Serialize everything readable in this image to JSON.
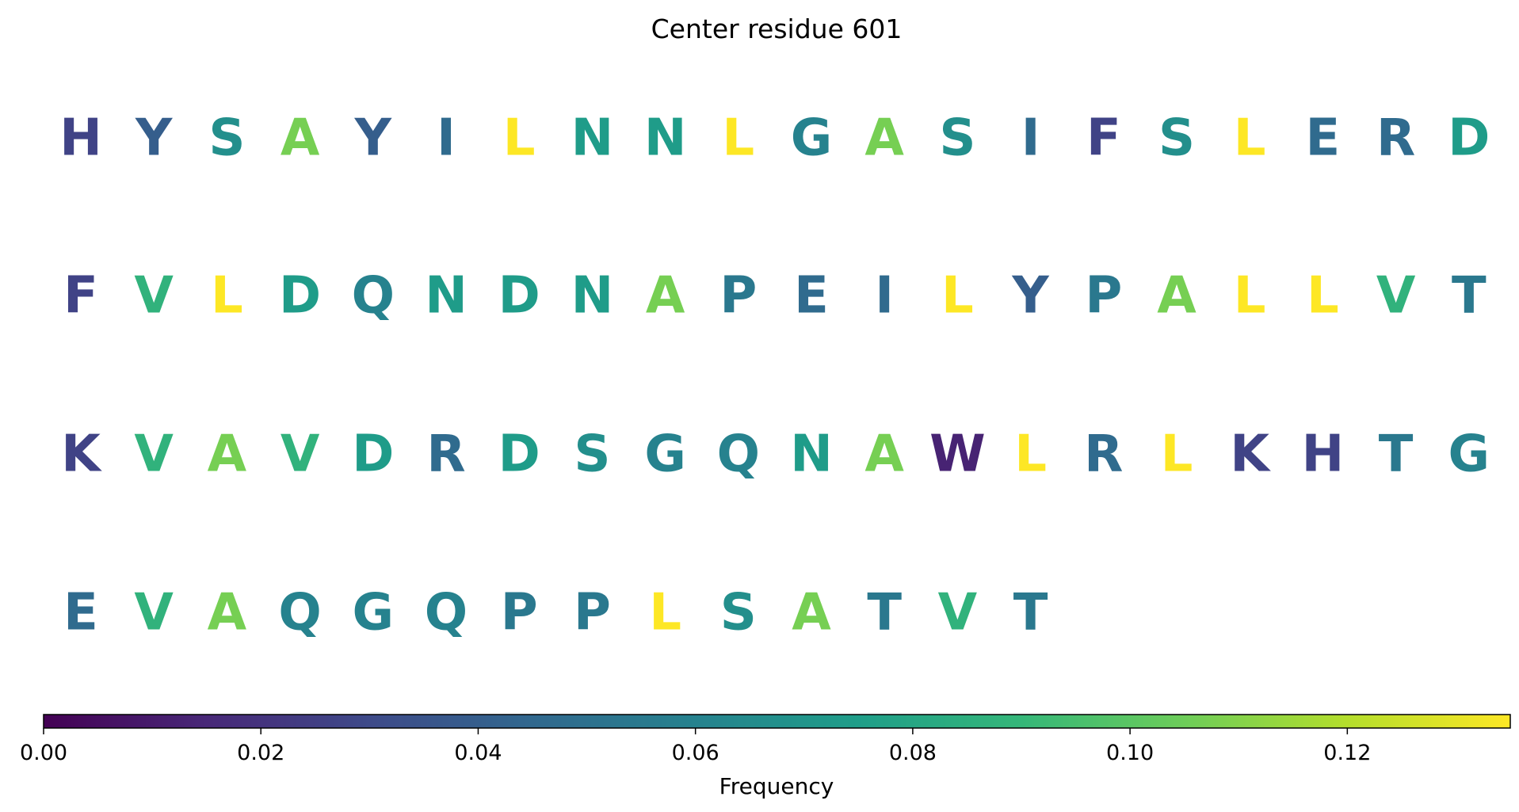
{
  "chart_data": {
    "type": "heatmap",
    "title": "Center residue 601",
    "colormap": "viridis",
    "colorbar": {
      "label": "Frequency",
      "range": [
        0,
        0.135
      ],
      "ticks": [
        0.0,
        0.02,
        0.04,
        0.06,
        0.08,
        0.1,
        0.12
      ],
      "tick_labels": [
        "0.00",
        "0.02",
        "0.04",
        "0.06",
        "0.08",
        "0.10",
        "0.12"
      ],
      "orientation": "horizontal",
      "placement": "bottom"
    },
    "columns_per_row": 20,
    "residues": [
      {
        "letter": "H",
        "frequency": 0.027
      },
      {
        "letter": "Y",
        "frequency": 0.04
      },
      {
        "letter": "S",
        "frequency": 0.067
      },
      {
        "letter": "A",
        "frequency": 0.107
      },
      {
        "letter": "Y",
        "frequency": 0.04
      },
      {
        "letter": "I",
        "frequency": 0.047
      },
      {
        "letter": "L",
        "frequency": 0.135
      },
      {
        "letter": "N",
        "frequency": 0.074
      },
      {
        "letter": "N",
        "frequency": 0.074
      },
      {
        "letter": "L",
        "frequency": 0.135
      },
      {
        "letter": "G",
        "frequency": 0.06
      },
      {
        "letter": "A",
        "frequency": 0.107
      },
      {
        "letter": "S",
        "frequency": 0.067
      },
      {
        "letter": "I",
        "frequency": 0.047
      },
      {
        "letter": "F",
        "frequency": 0.027
      },
      {
        "letter": "S",
        "frequency": 0.067
      },
      {
        "letter": "L",
        "frequency": 0.135
      },
      {
        "letter": "E",
        "frequency": 0.047
      },
      {
        "letter": "R",
        "frequency": 0.047
      },
      {
        "letter": "D",
        "frequency": 0.074
      },
      {
        "letter": "F",
        "frequency": 0.027
      },
      {
        "letter": "V",
        "frequency": 0.087
      },
      {
        "letter": "L",
        "frequency": 0.135
      },
      {
        "letter": "D",
        "frequency": 0.074
      },
      {
        "letter": "Q",
        "frequency": 0.06
      },
      {
        "letter": "N",
        "frequency": 0.074
      },
      {
        "letter": "D",
        "frequency": 0.074
      },
      {
        "letter": "N",
        "frequency": 0.074
      },
      {
        "letter": "A",
        "frequency": 0.107
      },
      {
        "letter": "P",
        "frequency": 0.054
      },
      {
        "letter": "E",
        "frequency": 0.047
      },
      {
        "letter": "I",
        "frequency": 0.047
      },
      {
        "letter": "L",
        "frequency": 0.135
      },
      {
        "letter": "Y",
        "frequency": 0.04
      },
      {
        "letter": "P",
        "frequency": 0.054
      },
      {
        "letter": "A",
        "frequency": 0.107
      },
      {
        "letter": "L",
        "frequency": 0.135
      },
      {
        "letter": "L",
        "frequency": 0.135
      },
      {
        "letter": "V",
        "frequency": 0.087
      },
      {
        "letter": "T",
        "frequency": 0.054
      },
      {
        "letter": "K",
        "frequency": 0.027
      },
      {
        "letter": "V",
        "frequency": 0.087
      },
      {
        "letter": "A",
        "frequency": 0.107
      },
      {
        "letter": "V",
        "frequency": 0.087
      },
      {
        "letter": "D",
        "frequency": 0.074
      },
      {
        "letter": "R",
        "frequency": 0.047
      },
      {
        "letter": "D",
        "frequency": 0.074
      },
      {
        "letter": "S",
        "frequency": 0.067
      },
      {
        "letter": "G",
        "frequency": 0.06
      },
      {
        "letter": "Q",
        "frequency": 0.06
      },
      {
        "letter": "N",
        "frequency": 0.074
      },
      {
        "letter": "A",
        "frequency": 0.107
      },
      {
        "letter": "W",
        "frequency": 0.013
      },
      {
        "letter": "L",
        "frequency": 0.135
      },
      {
        "letter": "R",
        "frequency": 0.047
      },
      {
        "letter": "L",
        "frequency": 0.135
      },
      {
        "letter": "K",
        "frequency": 0.027
      },
      {
        "letter": "H",
        "frequency": 0.027
      },
      {
        "letter": "T",
        "frequency": 0.054
      },
      {
        "letter": "G",
        "frequency": 0.06
      },
      {
        "letter": "E",
        "frequency": 0.047
      },
      {
        "letter": "V",
        "frequency": 0.087
      },
      {
        "letter": "A",
        "frequency": 0.107
      },
      {
        "letter": "Q",
        "frequency": 0.06
      },
      {
        "letter": "G",
        "frequency": 0.06
      },
      {
        "letter": "Q",
        "frequency": 0.06
      },
      {
        "letter": "P",
        "frequency": 0.054
      },
      {
        "letter": "P",
        "frequency": 0.054
      },
      {
        "letter": "L",
        "frequency": 0.135
      },
      {
        "letter": "S",
        "frequency": 0.067
      },
      {
        "letter": "A",
        "frequency": 0.107
      },
      {
        "letter": "T",
        "frequency": 0.054
      },
      {
        "letter": "V",
        "frequency": 0.087
      },
      {
        "letter": "T",
        "frequency": 0.054
      }
    ]
  }
}
